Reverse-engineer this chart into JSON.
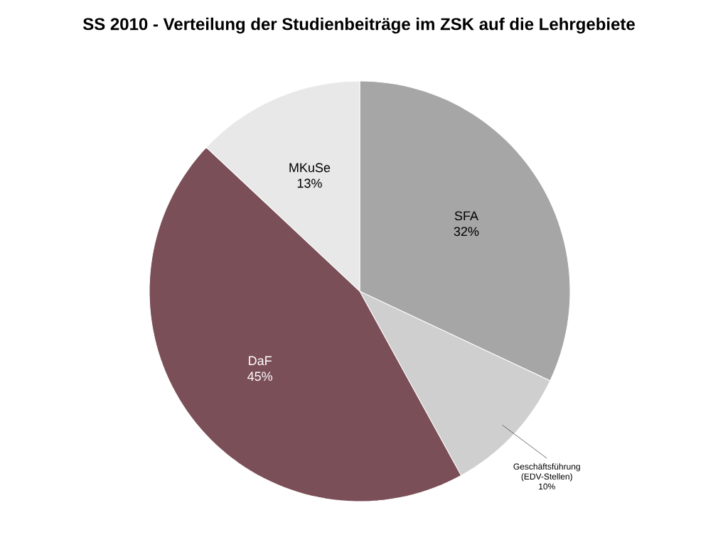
{
  "chart_data": {
    "type": "pie",
    "title": "SS 2010 - Verteilung der Studienbeiträge im ZSK auf die Lehrgebiete",
    "categories": [
      "SFA",
      "Geschäftsführung (EDV-Stellen)",
      "DaF",
      "MKuSe"
    ],
    "values": [
      32,
      10,
      45,
      13
    ],
    "colors": [
      "#a6a6a6",
      "#cfcfcf",
      "#7b4f58",
      "#e8e8e8"
    ],
    "value_labels": [
      "32%",
      "10%",
      "45%",
      "13%"
    ]
  }
}
